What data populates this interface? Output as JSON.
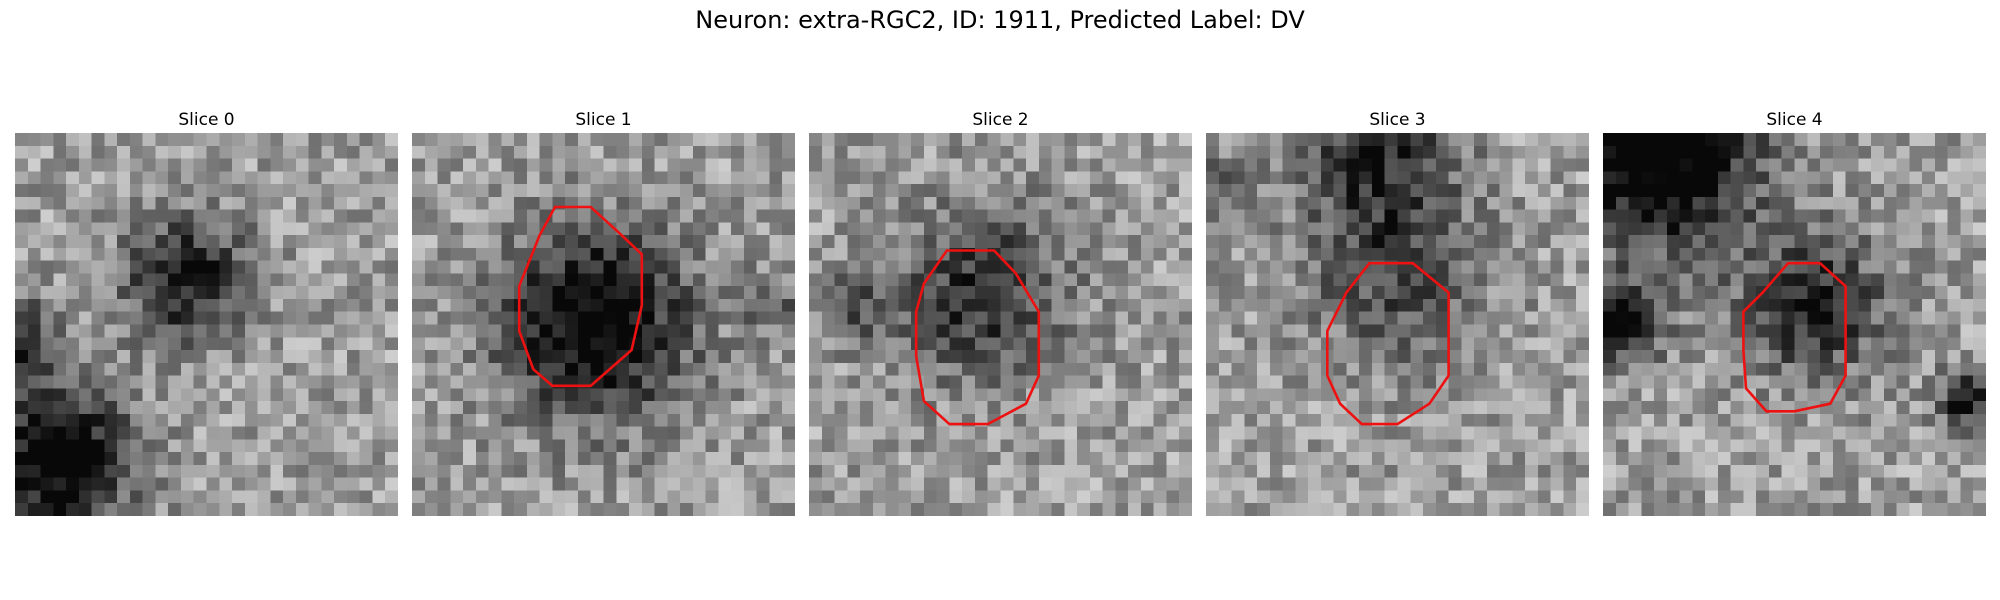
{
  "figure": {
    "title": "Neuron: extra-RGC2, ID: 1911, Predicted Label: DV",
    "contour_color": "#ee1111",
    "panels": [
      {
        "title": "Slice 0",
        "has_contour": false,
        "seed": 11,
        "dark_blobs": [
          [
            0.45,
            0.38,
            0.16,
            0.55
          ],
          [
            0.12,
            0.85,
            0.18,
            0.75
          ],
          [
            0.0,
            0.55,
            0.12,
            0.45
          ]
        ]
      },
      {
        "title": "Slice 1",
        "has_contour": true,
        "seed": 23,
        "dark_blobs": [
          [
            0.48,
            0.5,
            0.24,
            0.7
          ],
          [
            0.95,
            0.45,
            0.08,
            0.25
          ]
        ]
      },
      {
        "title": "Slice 2",
        "has_contour": true,
        "seed": 37,
        "dark_blobs": [
          [
            0.45,
            0.42,
            0.22,
            0.45
          ],
          [
            0.12,
            0.45,
            0.1,
            0.3
          ]
        ]
      },
      {
        "title": "Slice 3",
        "has_contour": true,
        "seed": 51,
        "dark_blobs": [
          [
            0.5,
            0.38,
            0.22,
            0.35
          ],
          [
            0.45,
            0.05,
            0.2,
            0.45
          ],
          [
            0.0,
            0.15,
            0.1,
            0.3
          ]
        ]
      },
      {
        "title": "Slice 4",
        "has_contour": true,
        "seed": 67,
        "dark_blobs": [
          [
            0.55,
            0.45,
            0.18,
            0.5
          ],
          [
            0.15,
            0.05,
            0.25,
            0.8
          ],
          [
            0.05,
            0.5,
            0.1,
            0.6
          ],
          [
            0.95,
            0.7,
            0.08,
            0.5
          ]
        ]
      }
    ]
  }
}
